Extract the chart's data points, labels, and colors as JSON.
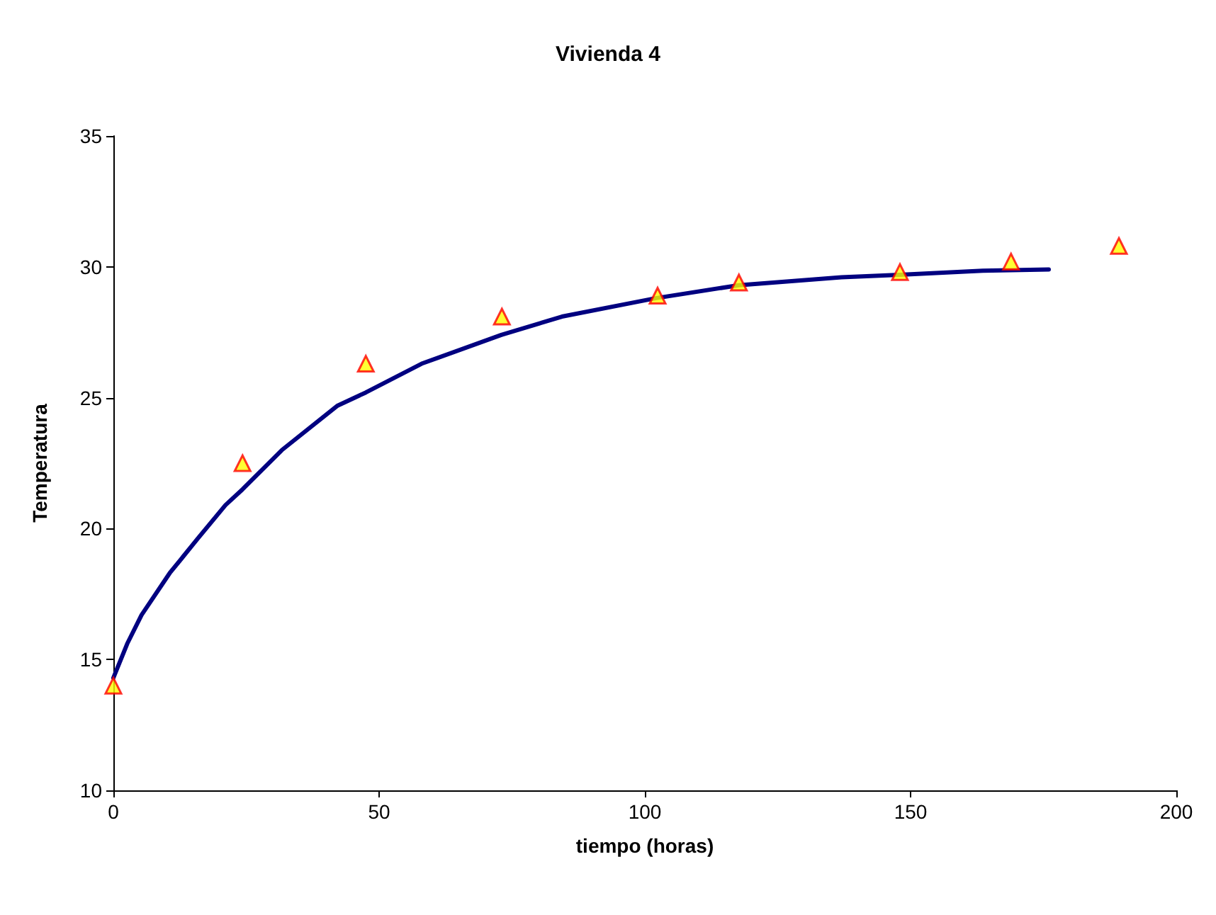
{
  "chart_data": {
    "type": "line",
    "title": "Vivienda 4",
    "xlabel": "tiempo (horas)",
    "ylabel": "Temperatura",
    "xlim": [
      0,
      200
    ],
    "xticks": [
      0,
      50,
      100,
      150,
      200
    ],
    "ylim": [
      10,
      35
    ],
    "yticks": [
      10,
      15,
      20,
      25,
      30,
      35
    ],
    "grid": false,
    "series": [
      {
        "color": "#000080",
        "marker": "none",
        "line_style": "solid",
        "x": [
          0,
          2.6,
          5.3,
          10.6,
          15.8,
          21.1,
          24.3,
          31.7,
          42.2,
          47.5,
          58,
          73,
          84.4,
          102,
          117.7,
          137,
          148,
          163.6,
          176
        ],
        "values": [
          14.3,
          15.6,
          16.7,
          18.3,
          19.6,
          20.9,
          21.5,
          23.0,
          24.7,
          25.2,
          26.3,
          27.4,
          28.1,
          28.8,
          29.3,
          29.6,
          29.7,
          29.85,
          29.9
        ]
      },
      {
        "type": "scatter",
        "color": "#ffff00",
        "marker": "triangle",
        "x": [
          0,
          24.3,
          47.5,
          73.1,
          102.4,
          117.7,
          148,
          168.9,
          189.2
        ],
        "values": [
          14.0,
          22.5,
          26.3,
          28.1,
          28.9,
          29.4,
          29.8,
          30.2,
          30.8
        ]
      }
    ]
  }
}
